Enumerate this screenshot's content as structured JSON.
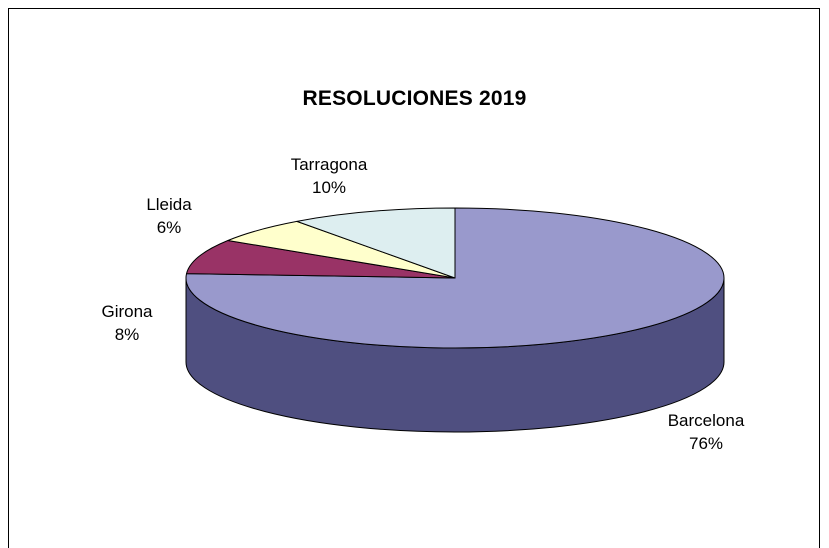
{
  "chart_data": {
    "type": "pie",
    "title": "RESOLUCIONES 2019",
    "slices": [
      {
        "name": "Barcelona",
        "percent_label": "76%",
        "value": 76,
        "color": "#9999CC",
        "side_color": "#4F4F80"
      },
      {
        "name": "Girona",
        "percent_label": "8%",
        "value": 8,
        "color": "#993366",
        "side_color": "#5C1F3D"
      },
      {
        "name": "Lleida",
        "percent_label": "6%",
        "value": 6,
        "color": "#FFFFCC",
        "side_color": "#99997A"
      },
      {
        "name": "Tarragona",
        "percent_label": "10%",
        "value": 10,
        "color": "#DDEEF0",
        "side_color": "#8A9596"
      }
    ],
    "style": "3d-pie",
    "legend": "none",
    "data_labels": "category-and-percent"
  }
}
